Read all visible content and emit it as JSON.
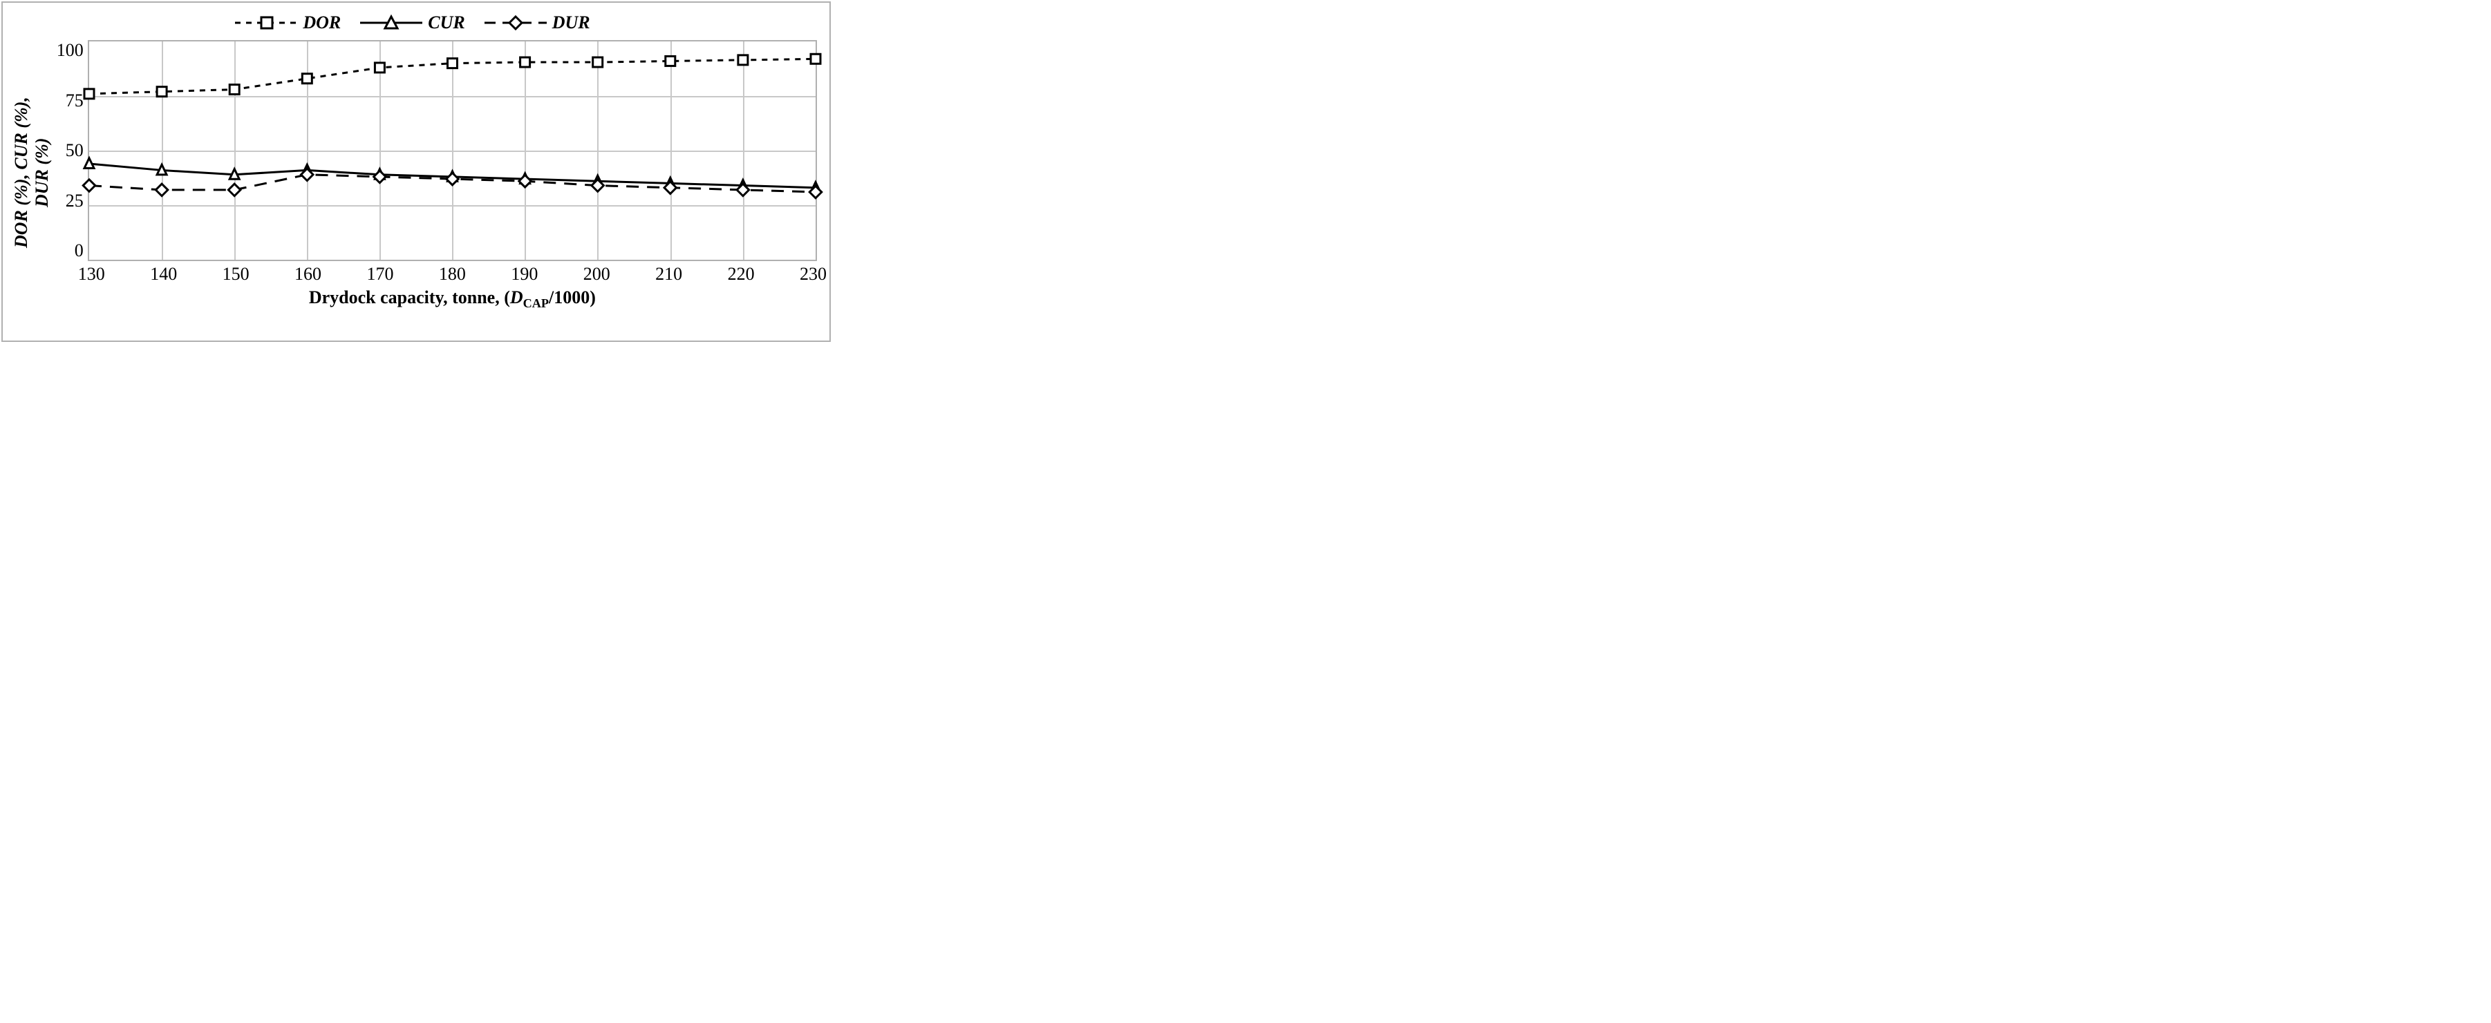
{
  "chart": {
    "type": "line",
    "background_color": "#ffffff",
    "border_color": "#b0b0b0",
    "grid_color": "#c8c8c8",
    "text_color": "#000000",
    "font_family": "Times New Roman",
    "label_fontsize": 26,
    "tick_fontsize": 26,
    "ylabel": "DOR (%), CUR (%),\nDUR (%)",
    "xlabel_plain": "Drydock capacity, tonne, (",
    "xlabel_italic": "D",
    "xlabel_sub": "CAP",
    "xlabel_tail": "/1000)",
    "ylim": [
      0,
      100
    ],
    "ytick_step": 25,
    "yticks": [
      100,
      75,
      50,
      25,
      0
    ],
    "xlim": [
      130,
      230
    ],
    "xtick_step": 10,
    "xticks": [
      130,
      140,
      150,
      160,
      170,
      180,
      190,
      200,
      210,
      220,
      230
    ],
    "legend_position": "top-center",
    "series": [
      {
        "id": "dor",
        "label": "DOR",
        "marker": "square",
        "marker_size": 14,
        "marker_fill": "#ffffff",
        "marker_stroke": "#000000",
        "line_dash": "short-dash",
        "line_width": 3,
        "line_color": "#000000",
        "x": [
          130,
          140,
          150,
          160,
          170,
          180,
          190,
          200,
          210,
          220,
          230
        ],
        "y": [
          76,
          77,
          78,
          83,
          88,
          90,
          90.5,
          90.5,
          91,
          91.5,
          92
        ]
      },
      {
        "id": "cur",
        "label": "CUR",
        "marker": "triangle",
        "marker_size": 14,
        "marker_fill": "#ffffff",
        "marker_stroke": "#000000",
        "line_dash": "solid",
        "line_width": 3,
        "line_color": "#000000",
        "x": [
          130,
          140,
          150,
          160,
          170,
          180,
          190,
          200,
          210,
          220,
          230
        ],
        "y": [
          44,
          41,
          39,
          41,
          39,
          38,
          37,
          36,
          35,
          34,
          33
        ]
      },
      {
        "id": "dur",
        "label": "DUR",
        "marker": "diamond",
        "marker_size": 14,
        "marker_fill": "#ffffff",
        "marker_stroke": "#000000",
        "line_dash": "long-dash",
        "line_width": 3,
        "line_color": "#000000",
        "x": [
          130,
          140,
          150,
          160,
          170,
          180,
          190,
          200,
          210,
          220,
          230
        ],
        "y": [
          34,
          32,
          32,
          39,
          38,
          37,
          36,
          34,
          33,
          32,
          31
        ]
      }
    ]
  }
}
